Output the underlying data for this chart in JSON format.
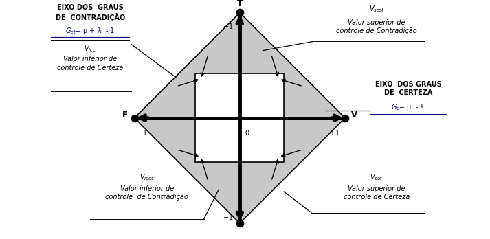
{
  "bg_color": "#ffffff",
  "diamond_color": "#c8c8c8",
  "square_color": "#ffffff",
  "axis_lw": 3.5,
  "border_lw": 1.2,
  "dot_size": 55,
  "sq": 0.42,
  "xlim": [
    -1.9,
    2.0
  ],
  "ylim": [
    -1.15,
    1.12
  ],
  "figsize": [
    7.13,
    3.48
  ],
  "dpi": 100
}
